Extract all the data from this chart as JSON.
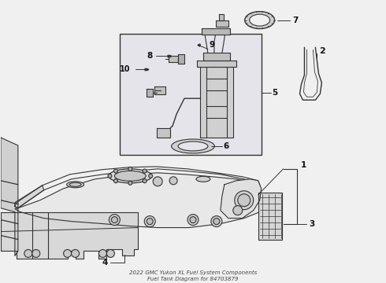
{
  "bg_color": "#f0f0f0",
  "line_color": "#333333",
  "inset_bg": "#e8e8ec",
  "label_color": "#111111",
  "title1": "2022 GMC Yukon XL Fuel System Components",
  "title2": "Fuel Tank Diagram for 84703879"
}
